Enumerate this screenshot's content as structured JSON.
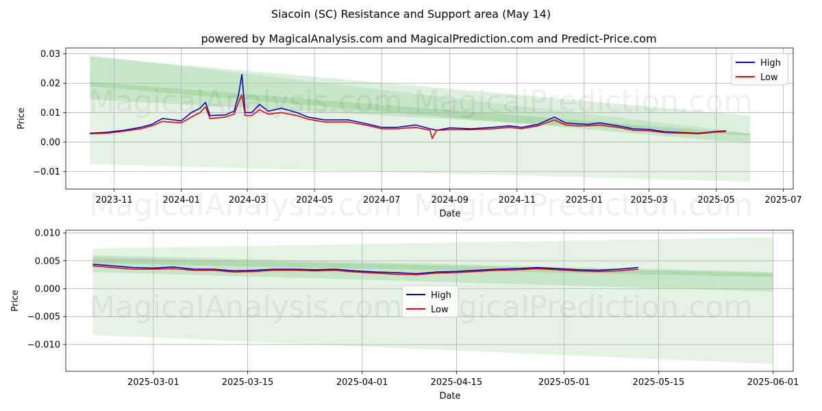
{
  "title": "Siacoin (SC) Resistance and Support area (May 14)",
  "subtitle": "powered by MagicalAnalysis.com and MagicalPrediction.com and Predict-Price.com",
  "watermarks": [
    "MagicalAnalysis.com",
    "MagicalPrediction.com"
  ],
  "colors": {
    "high": "#0000cc",
    "low": "#ee0000",
    "band": "#2ca02c",
    "grid": "#b0b0b0"
  },
  "chart_data": [
    {
      "type": "line",
      "xlabel": "Date",
      "ylabel": "Price",
      "xlim": [
        "2023-09-18",
        "2025-07-10"
      ],
      "ylim": [
        -0.016,
        0.032
      ],
      "x_ticks": [
        "2023-11",
        "2024-01",
        "2024-03",
        "2024-05",
        "2024-07",
        "2024-09",
        "2024-11",
        "2025-01",
        "2025-03",
        "2025-05",
        "2025-07"
      ],
      "y_ticks": [
        -0.01,
        0.0,
        0.01,
        0.02,
        0.03
      ],
      "y_tick_labels": [
        "−0.01",
        "0.00",
        "0.01",
        "0.02",
        "0.03"
      ],
      "grid": true,
      "legend": {
        "position": "top-right",
        "entries": [
          "High",
          "Low"
        ]
      },
      "bands": [
        {
          "x": [
            "2023-10-10",
            "2025-06-01"
          ],
          "upper": [
            0.0295,
            0.003
          ],
          "lower": [
            -0.0075,
            -0.0135
          ],
          "opacity": 0.12
        },
        {
          "x": [
            "2023-10-10",
            "2025-06-01"
          ],
          "upper": [
            0.029,
            0.009
          ],
          "lower": [
            0.019,
            -0.0005
          ],
          "opacity": 0.16
        },
        {
          "x": [
            "2023-10-10",
            "2025-06-01"
          ],
          "upper": [
            0.0205,
            0.0028
          ],
          "lower": [
            0.0145,
            0.0022
          ],
          "opacity": 0.16
        }
      ],
      "series": [
        {
          "name": "High",
          "x": [
            "2023-10-10",
            "2023-10-25",
            "2023-11-10",
            "2023-11-25",
            "2023-12-05",
            "2023-12-15",
            "2024-01-01",
            "2024-01-10",
            "2024-01-18",
            "2024-01-23",
            "2024-01-27",
            "2024-02-10",
            "2024-02-18",
            "2024-02-22",
            "2024-02-25",
            "2024-02-28",
            "2024-03-05",
            "2024-03-12",
            "2024-03-20",
            "2024-04-01",
            "2024-04-15",
            "2024-04-25",
            "2024-05-10",
            "2024-06-01",
            "2024-06-20",
            "2024-07-01",
            "2024-07-15",
            "2024-08-01",
            "2024-08-14",
            "2024-08-20",
            "2024-09-01",
            "2024-09-20",
            "2024-10-10",
            "2024-10-25",
            "2024-11-05",
            "2024-11-20",
            "2024-12-05",
            "2024-12-15",
            "2024-12-25",
            "2025-01-05",
            "2025-01-15",
            "2025-02-01",
            "2025-02-15",
            "2025-03-01",
            "2025-03-15",
            "2025-04-01",
            "2025-04-15",
            "2025-05-01",
            "2025-05-10"
          ],
          "y": [
            0.003,
            0.0033,
            0.004,
            0.005,
            0.006,
            0.008,
            0.0072,
            0.01,
            0.0115,
            0.0135,
            0.009,
            0.0092,
            0.0105,
            0.016,
            0.023,
            0.01,
            0.01,
            0.0128,
            0.0105,
            0.0115,
            0.01,
            0.0085,
            0.0075,
            0.0075,
            0.006,
            0.005,
            0.005,
            0.0058,
            0.0045,
            0.004,
            0.0048,
            0.0045,
            0.005,
            0.0055,
            0.005,
            0.006,
            0.0085,
            0.0065,
            0.0062,
            0.006,
            0.0065,
            0.0055,
            0.0045,
            0.0043,
            0.0035,
            0.0032,
            0.003,
            0.0036,
            0.0038
          ]
        },
        {
          "name": "Low",
          "x": [
            "2023-10-10",
            "2023-10-25",
            "2023-11-10",
            "2023-11-25",
            "2023-12-05",
            "2023-12-15",
            "2024-01-01",
            "2024-01-10",
            "2024-01-18",
            "2024-01-23",
            "2024-01-27",
            "2024-02-10",
            "2024-02-18",
            "2024-02-22",
            "2024-02-25",
            "2024-02-28",
            "2024-03-05",
            "2024-03-12",
            "2024-03-20",
            "2024-04-01",
            "2024-04-15",
            "2024-04-25",
            "2024-05-10",
            "2024-06-01",
            "2024-06-20",
            "2024-07-01",
            "2024-07-15",
            "2024-08-01",
            "2024-08-14",
            "2024-08-16",
            "2024-08-20",
            "2024-09-01",
            "2024-09-20",
            "2024-10-10",
            "2024-10-25",
            "2024-11-05",
            "2024-11-20",
            "2024-12-05",
            "2024-12-15",
            "2024-12-25",
            "2025-01-05",
            "2025-01-15",
            "2025-02-01",
            "2025-02-15",
            "2025-03-01",
            "2025-03-15",
            "2025-04-01",
            "2025-04-15",
            "2025-05-01",
            "2025-05-10"
          ],
          "y": [
            0.0028,
            0.003,
            0.0037,
            0.0045,
            0.0055,
            0.007,
            0.0065,
            0.0085,
            0.01,
            0.012,
            0.008,
            0.0085,
            0.0095,
            0.0135,
            0.016,
            0.009,
            0.009,
            0.011,
            0.0095,
            0.01,
            0.009,
            0.0078,
            0.0068,
            0.0068,
            0.0055,
            0.0045,
            0.0045,
            0.005,
            0.004,
            0.0012,
            0.004,
            0.0042,
            0.0042,
            0.0045,
            0.005,
            0.0045,
            0.0055,
            0.0075,
            0.0058,
            0.0055,
            0.0055,
            0.0058,
            0.005,
            0.004,
            0.0038,
            0.0032,
            0.003,
            0.0028,
            0.0034,
            0.0036
          ]
        }
      ]
    },
    {
      "type": "line",
      "xlabel": "Date",
      "ylabel": "Price",
      "xlim": [
        "2025-02-16",
        "2025-06-04"
      ],
      "ylim": [
        -0.0148,
        0.0105
      ],
      "x_ticks": [
        "2025-03-01",
        "2025-03-15",
        "2025-04-01",
        "2025-04-15",
        "2025-05-01",
        "2025-05-15",
        "2025-06-01"
      ],
      "y_ticks": [
        -0.01,
        -0.005,
        0.0,
        0.005,
        0.01
      ],
      "y_tick_labels": [
        "−0.010",
        "−0.005",
        "0.000",
        "0.005",
        "0.010"
      ],
      "grid": true,
      "legend": {
        "position": "center",
        "entries": [
          "High",
          "Low"
        ]
      },
      "bands": [
        {
          "x": [
            "2025-02-20",
            "2025-06-01"
          ],
          "upper": [
            0.0072,
            0.0092
          ],
          "lower": [
            -0.0083,
            -0.0135
          ],
          "opacity": 0.12
        },
        {
          "x": [
            "2025-02-20",
            "2025-06-01"
          ],
          "upper": [
            0.006,
            0.003
          ],
          "lower": [
            0.003,
            -0.0005
          ],
          "opacity": 0.16
        },
        {
          "x": [
            "2025-02-20",
            "2025-06-01"
          ],
          "upper": [
            0.0056,
            0.0028
          ],
          "lower": [
            0.0046,
            0.0021
          ],
          "opacity": 0.16
        }
      ],
      "series": [
        {
          "name": "High",
          "x": [
            "2025-02-20",
            "2025-02-23",
            "2025-02-26",
            "2025-03-01",
            "2025-03-04",
            "2025-03-07",
            "2025-03-10",
            "2025-03-13",
            "2025-03-16",
            "2025-03-19",
            "2025-03-22",
            "2025-03-25",
            "2025-03-28",
            "2025-03-31",
            "2025-04-03",
            "2025-04-06",
            "2025-04-09",
            "2025-04-12",
            "2025-04-15",
            "2025-04-18",
            "2025-04-21",
            "2025-04-24",
            "2025-04-27",
            "2025-04-30",
            "2025-05-03",
            "2025-05-06",
            "2025-05-09",
            "2025-05-12"
          ],
          "y": [
            0.0044,
            0.0041,
            0.0038,
            0.0037,
            0.0039,
            0.0035,
            0.0035,
            0.0032,
            0.0033,
            0.0035,
            0.0035,
            0.0034,
            0.0035,
            0.0032,
            0.003,
            0.0029,
            0.0027,
            0.003,
            0.0031,
            0.0033,
            0.0035,
            0.0036,
            0.0038,
            0.0036,
            0.0034,
            0.0033,
            0.0035,
            0.0038
          ]
        },
        {
          "name": "Low",
          "x": [
            "2025-02-20",
            "2025-02-23",
            "2025-02-26",
            "2025-03-01",
            "2025-03-04",
            "2025-03-07",
            "2025-03-10",
            "2025-03-13",
            "2025-03-16",
            "2025-03-19",
            "2025-03-22",
            "2025-03-25",
            "2025-03-28",
            "2025-03-31",
            "2025-04-03",
            "2025-04-06",
            "2025-04-09",
            "2025-04-12",
            "2025-04-15",
            "2025-04-18",
            "2025-04-21",
            "2025-04-24",
            "2025-04-27",
            "2025-04-30",
            "2025-05-03",
            "2025-05-06",
            "2025-05-09",
            "2025-05-12"
          ],
          "y": [
            0.0041,
            0.0038,
            0.0035,
            0.0035,
            0.0036,
            0.0033,
            0.0033,
            0.003,
            0.0031,
            0.0033,
            0.0033,
            0.0032,
            0.0033,
            0.003,
            0.0028,
            0.0026,
            0.0025,
            0.0028,
            0.0029,
            0.0031,
            0.0033,
            0.0034,
            0.0036,
            0.0034,
            0.0032,
            0.0031,
            0.0032,
            0.0035
          ]
        }
      ]
    }
  ]
}
